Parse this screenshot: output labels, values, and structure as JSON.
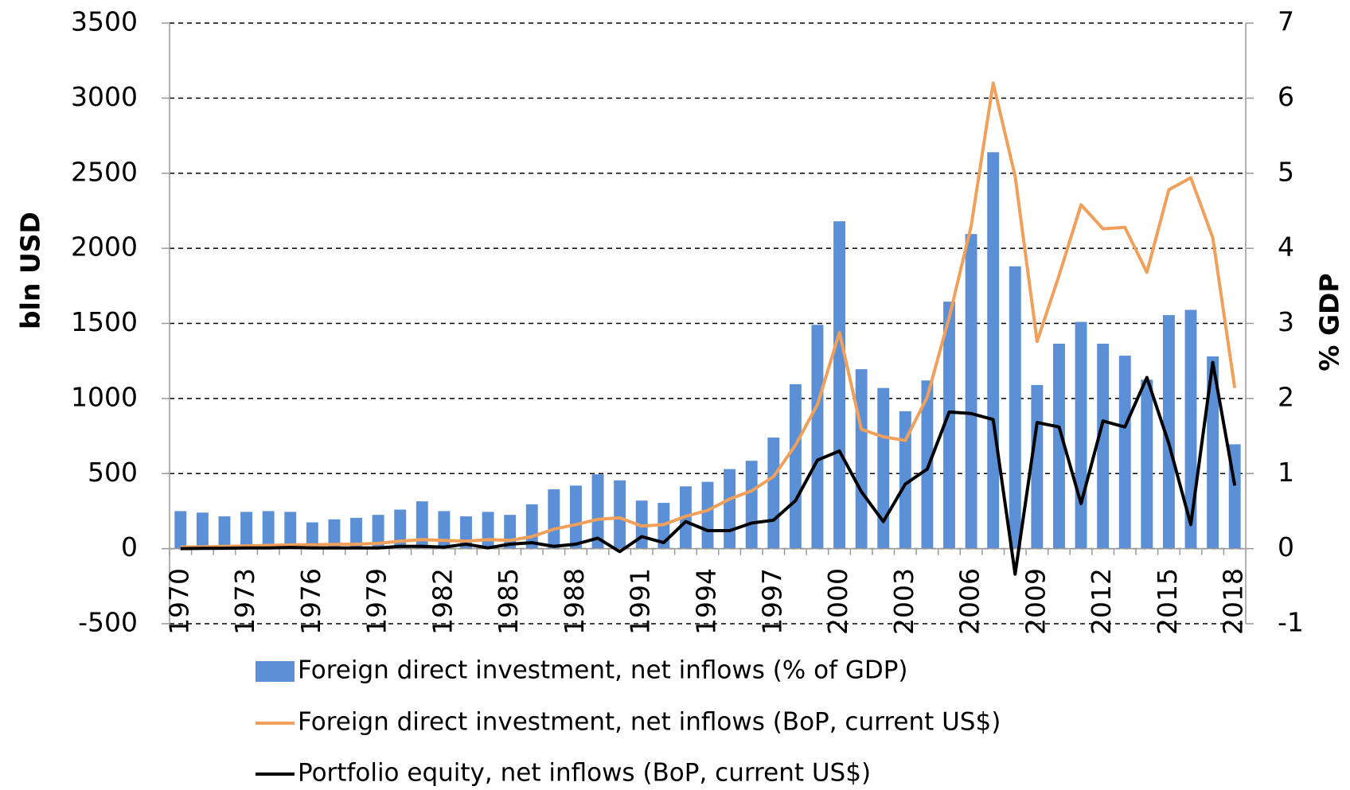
{
  "chart_data": {
    "type": "bar_line",
    "categories": [
      "1970",
      null,
      null,
      "1973",
      null,
      null,
      "1976",
      null,
      null,
      "1979",
      null,
      null,
      "1982",
      null,
      null,
      "1985",
      null,
      null,
      "1988",
      null,
      null,
      "1991",
      null,
      null,
      "1994",
      null,
      null,
      "1997",
      null,
      null,
      "2000",
      null,
      null,
      "2003",
      null,
      null,
      "2006",
      null,
      null,
      "2009",
      null,
      null,
      "2012",
      null,
      null,
      "2015",
      null,
      null,
      "2018"
    ],
    "series": [
      {
        "name": "Foreign direct investment, net inflows (% of GDP)",
        "type": "bar",
        "axis": "y2",
        "color": "#5b8fd6",
        "values": [
          0.5,
          0.48,
          0.43,
          0.49,
          0.5,
          0.49,
          0.35,
          0.39,
          0.41,
          0.45,
          0.52,
          0.63,
          0.5,
          0.43,
          0.49,
          0.45,
          0.59,
          0.79,
          0.84,
          0.99,
          0.91,
          0.64,
          0.61,
          0.83,
          0.89,
          1.06,
          1.17,
          1.48,
          2.19,
          2.98,
          4.36,
          2.39,
          2.14,
          1.83,
          2.24,
          3.29,
          4.19,
          5.28,
          3.76,
          2.18,
          2.73,
          3.02,
          2.73,
          2.57,
          2.25,
          3.11,
          3.18,
          2.56,
          1.39
        ]
      },
      {
        "name": "Foreign direct investment, net inflows (BoP, current US$)",
        "type": "line",
        "color": "#f0a05a",
        "values": [
          10,
          12,
          15,
          18,
          22,
          25,
          26,
          28,
          30,
          35,
          50,
          60,
          55,
          50,
          60,
          55,
          80,
          130,
          160,
          195,
          205,
          150,
          160,
          215,
          255,
          330,
          385,
          480,
          690,
          960,
          1440,
          795,
          745,
          720,
          1010,
          1540,
          2150,
          3100,
          2480,
          1380,
          1820,
          2290,
          2130,
          2140,
          1840,
          2390,
          2470,
          2070,
          1070
        ]
      },
      {
        "name": "Portfolio equity, net inflows (BoP, current US$)",
        "type": "line",
        "color": "#000000",
        "values": [
          0,
          2,
          3,
          5,
          5,
          8,
          5,
          5,
          5,
          5,
          15,
          15,
          10,
          30,
          5,
          30,
          40,
          15,
          30,
          70,
          -20,
          80,
          40,
          180,
          120,
          120,
          170,
          190,
          320,
          590,
          650,
          380,
          180,
          430,
          530,
          910,
          900,
          860,
          -170,
          840,
          810,
          300,
          850,
          810,
          1140,
          700,
          160,
          1240,
          420
        ]
      }
    ],
    "ylabel": "bln USD",
    "y2label": "% GDP",
    "ylim": [
      -500,
      3500
    ],
    "yticks": [
      -500,
      0,
      500,
      1000,
      1500,
      2000,
      2500,
      3000,
      3500
    ],
    "y2lim": [
      -1,
      7
    ],
    "y2ticks": [
      -1,
      0,
      1,
      2,
      3,
      4,
      5,
      6,
      7
    ],
    "grid": true,
    "legend": "bottom"
  }
}
